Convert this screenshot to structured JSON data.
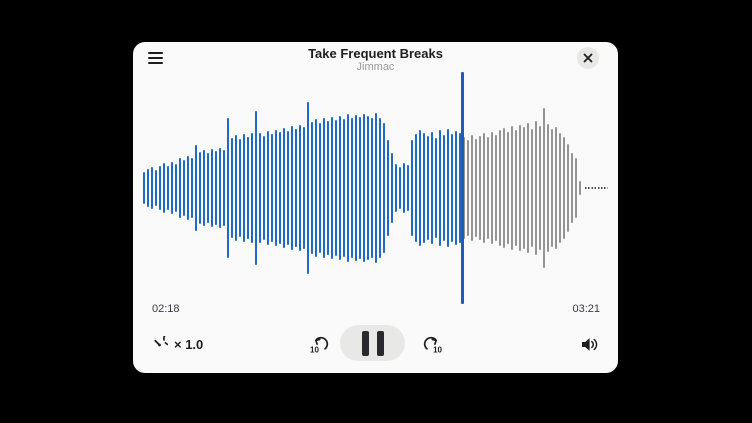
{
  "header": {
    "title": "Take Frequent Breaks",
    "artist": "Jimmac",
    "menu_icon": "hamburger-menu-icon",
    "close_icon": "close-icon"
  },
  "waveform": {
    "bar_heights": [
      32,
      38,
      42,
      36,
      44,
      50,
      44,
      52,
      48,
      60,
      56,
      64,
      60,
      86,
      72,
      76,
      70,
      78,
      74,
      80,
      76,
      140,
      100,
      106,
      98,
      108,
      102,
      110,
      154,
      110,
      104,
      114,
      108,
      116,
      112,
      120,
      114,
      124,
      118,
      126,
      122,
      172,
      132,
      138,
      130,
      140,
      134,
      142,
      136,
      144,
      138,
      148,
      140,
      146,
      142,
      148,
      144,
      140,
      150,
      140,
      130,
      96,
      70,
      48,
      42,
      50,
      46,
      96,
      108,
      116,
      110,
      104,
      112,
      100,
      116,
      106,
      118,
      108,
      114,
      110,
      102,
      96,
      106,
      98,
      104,
      110,
      102,
      112,
      106,
      116,
      120,
      112,
      124,
      116,
      126,
      122,
      130,
      118,
      134,
      124,
      160,
      128,
      118,
      122,
      110,
      102,
      88,
      70,
      60,
      14
    ],
    "played_count": 80,
    "colors": {
      "played": "#1f6ac8",
      "remaining": "#949494",
      "playhead": "#1a5fb4"
    }
  },
  "timeline": {
    "elapsed": "02:18",
    "total": "03:21"
  },
  "controls": {
    "speed": {
      "icon": "speedometer-icon",
      "label": "× 1.0"
    },
    "skip_back": {
      "icon": "skip-back-10-icon",
      "label": "10"
    },
    "pause": {
      "icon": "pause-icon"
    },
    "skip_forward": {
      "icon": "skip-forward-10-icon",
      "label": "10"
    },
    "volume": {
      "icon": "volume-high-icon"
    }
  },
  "colors": {
    "page_bg": "#000000",
    "card_bg": "#fafafa",
    "pill_bg": "#e8e8e7",
    "text_primary": "#1e1e1e",
    "text_secondary": "#9a9996",
    "time_text": "#3d3846"
  }
}
